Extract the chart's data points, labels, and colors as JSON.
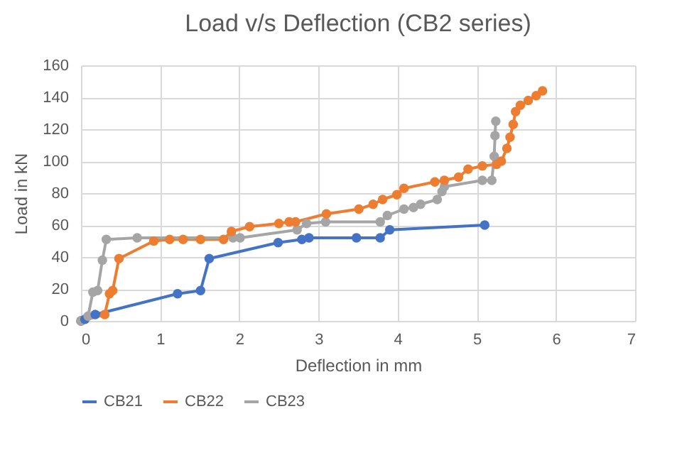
{
  "chart_data": {
    "type": "line",
    "title": "Load v/s Deflection (CB2 series)",
    "xlabel": "Deflection in mm",
    "ylabel": "Load in kN",
    "xlim": [
      0,
      7
    ],
    "xticks": [
      0,
      1,
      2,
      3,
      4,
      5,
      6,
      7
    ],
    "ylim": [
      0,
      160
    ],
    "yticks": [
      0,
      20,
      40,
      60,
      80,
      100,
      120,
      140,
      160
    ],
    "grid": true,
    "legend": "bottom",
    "marker": "circle",
    "line_style": "solid",
    "series": [
      {
        "name": "CB21",
        "color": "#4472c4",
        "x": [
          0,
          0.05,
          0.18,
          1.22,
          1.51,
          1.62,
          2.49,
          2.79,
          2.88,
          3.48,
          3.78,
          3.9,
          5.1
        ],
        "values": [
          0,
          1,
          4,
          17,
          19,
          39,
          49,
          51,
          52,
          52,
          52,
          57,
          60
        ]
      },
      {
        "name": "CB22",
        "color": "#ed7d31",
        "x": [
          0,
          0.3,
          0.36,
          0.4,
          0.48,
          0.92,
          1.12,
          1.29,
          1.51,
          1.8,
          1.9,
          2.13,
          2.5,
          2.63,
          2.71,
          3.1,
          3.51,
          3.69,
          3.81,
          3.99,
          4.08,
          4.47,
          4.59,
          4.77,
          4.89,
          5.07,
          5.25,
          5.31,
          5.38,
          5.42,
          5.46,
          5.49,
          5.55,
          5.65,
          5.75,
          5.83
        ],
        "values": [
          0,
          4,
          17,
          19,
          39,
          50,
          51,
          51,
          51,
          51,
          56,
          59,
          61,
          62,
          62,
          67,
          70,
          73,
          76,
          79,
          83,
          87,
          88,
          90,
          95,
          97,
          98,
          100,
          108,
          115,
          123,
          131,
          135,
          138,
          141,
          144
        ]
      },
      {
        "name": "CB23",
        "color": "#a5a5a5",
        "x": [
          0,
          0.09,
          0.15,
          0.21,
          0.27,
          0.32,
          0.71,
          1.92,
          2.01,
          2.73,
          2.85,
          3.09,
          3.78,
          3.87,
          4.08,
          4.2,
          4.29,
          4.5,
          4.56,
          4.59,
          5.07,
          5.19,
          5.22,
          5.23,
          5.24
        ],
        "values": [
          0,
          3,
          18,
          19,
          38,
          51,
          52,
          52,
          52,
          57,
          61,
          62,
          62,
          66,
          70,
          71,
          73,
          76,
          81,
          84,
          88,
          88,
          103,
          116,
          125
        ]
      }
    ]
  }
}
